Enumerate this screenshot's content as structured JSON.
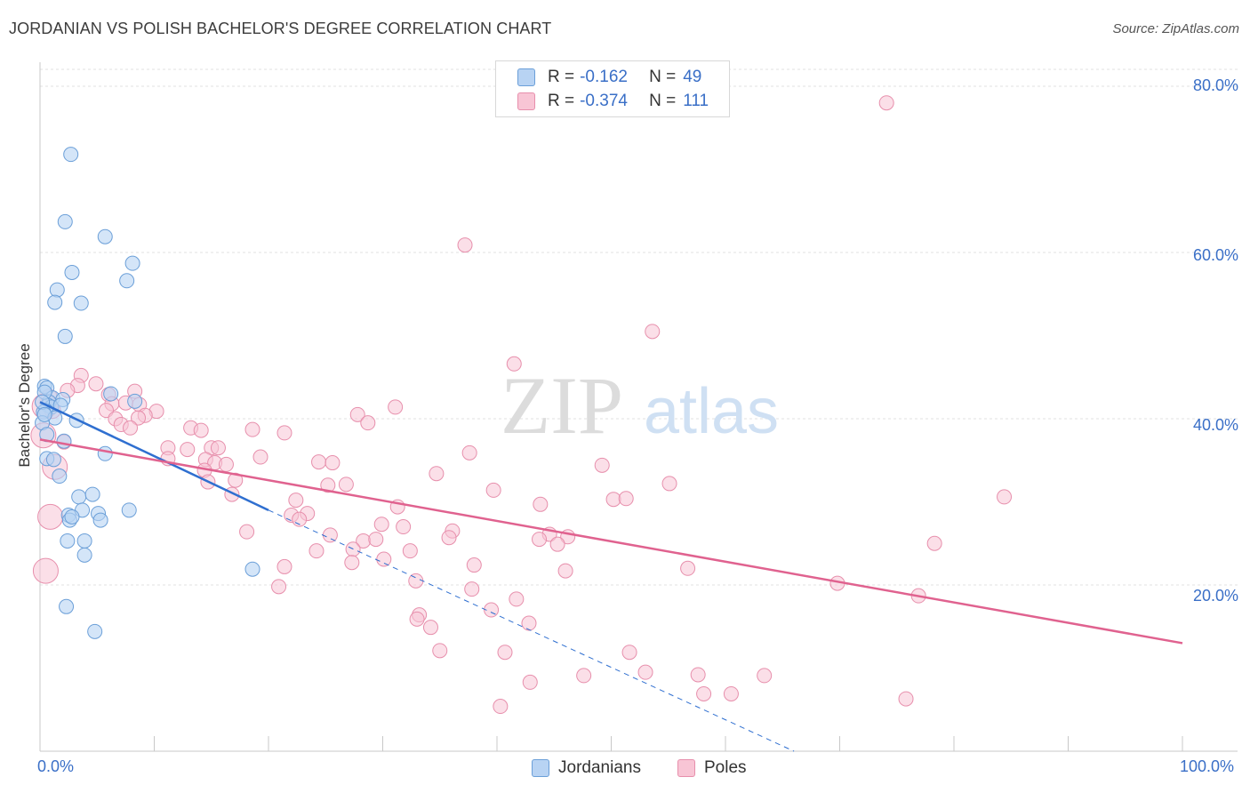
{
  "header": {
    "title": "JORDANIAN VS POLISH BACHELOR'S DEGREE CORRELATION CHART",
    "source": "Source: ZipAtlas.com"
  },
  "watermark": {
    "zip": "ZIP",
    "atlas": "atlas"
  },
  "legend_stats": [
    {
      "r_label": "R =",
      "r_value": "-0.162",
      "n_label": "N =",
      "n_value": "49"
    },
    {
      "r_label": "R =",
      "r_value": "-0.374",
      "n_label": "N =",
      "n_value": "111"
    }
  ],
  "legend_bottom": [
    "Jordanians",
    "Poles"
  ],
  "colors": {
    "jordanians_fill": "#b8d3f3",
    "jordanians_stroke": "#6b9fd8",
    "jordanians_line": "#2f6fd0",
    "poles_fill": "#f8c5d5",
    "poles_stroke": "#e78fac",
    "poles_line": "#e0628f",
    "tick_text": "#3a6fc7",
    "grid": "#e0e0e0"
  },
  "chart_data": {
    "type": "scatter",
    "title": "JORDANIAN VS POLISH BACHELOR'S DEGREE CORRELATION CHART",
    "xlabel": "",
    "ylabel": "Bachelor's Degree",
    "xlim": [
      0,
      100
    ],
    "ylim": [
      0,
      81
    ],
    "x_tick_labels": [
      "0.0%",
      "100.0%"
    ],
    "y_ticks": [
      20,
      40,
      60,
      80
    ],
    "y_tick_labels": [
      "20.0%",
      "40.0%",
      "60.0%",
      "80.0%"
    ],
    "grid": true,
    "series": [
      {
        "name": "Jordanians",
        "r": -0.162,
        "n": 49,
        "trend": {
          "x0": 0,
          "y0": 42,
          "x1": 20,
          "y1": 29,
          "dashed_to_x": 66,
          "dashed_to_y": 0
        },
        "points": [
          [
            2.7,
            71.8
          ],
          [
            2.2,
            63.7
          ],
          [
            5.7,
            61.9
          ],
          [
            8.1,
            58.7
          ],
          [
            2.8,
            57.6
          ],
          [
            7.6,
            56.6
          ],
          [
            1.5,
            55.5
          ],
          [
            1.3,
            54.0
          ],
          [
            3.6,
            53.9
          ],
          [
            2.2,
            49.9
          ],
          [
            0.4,
            43.9
          ],
          [
            0.6,
            43.7
          ],
          [
            6.2,
            43.0
          ],
          [
            1.1,
            42.5
          ],
          [
            2.0,
            42.3
          ],
          [
            8.3,
            42.1
          ],
          [
            0.8,
            42.0
          ],
          [
            0.7,
            41.6
          ],
          [
            1.0,
            41.4
          ],
          [
            1.8,
            41.6
          ],
          [
            0.5,
            41.0
          ],
          [
            0.3,
            40.8
          ],
          [
            1.3,
            40.1
          ],
          [
            3.2,
            39.8
          ],
          [
            0.2,
            39.5
          ],
          [
            0.6,
            38.1
          ],
          [
            2.1,
            37.3
          ],
          [
            5.7,
            35.8
          ],
          [
            0.6,
            35.2
          ],
          [
            1.2,
            35.1
          ],
          [
            1.7,
            33.1
          ],
          [
            3.4,
            30.6
          ],
          [
            4.6,
            30.9
          ],
          [
            7.8,
            29.0
          ],
          [
            3.7,
            29.0
          ],
          [
            2.5,
            28.4
          ],
          [
            2.6,
            27.8
          ],
          [
            2.8,
            28.2
          ],
          [
            5.1,
            28.6
          ],
          [
            5.3,
            27.8
          ],
          [
            2.4,
            25.3
          ],
          [
            3.9,
            25.3
          ],
          [
            3.9,
            23.6
          ],
          [
            18.6,
            21.9
          ],
          [
            2.3,
            17.4
          ],
          [
            4.8,
            14.4
          ],
          [
            0.4,
            43.2
          ],
          [
            0.2,
            42.0
          ],
          [
            0.4,
            40.5
          ]
        ]
      },
      {
        "name": "Poles",
        "r": -0.374,
        "n": 111,
        "trend": {
          "x0": 0,
          "y0": 37.5,
          "x1": 100,
          "y1": 13
        },
        "points": [
          [
            74.1,
            78.0
          ],
          [
            37.2,
            60.9
          ],
          [
            53.6,
            50.5
          ],
          [
            41.5,
            46.6
          ],
          [
            3.6,
            45.2
          ],
          [
            3.3,
            44.0
          ],
          [
            4.9,
            44.2
          ],
          [
            6.0,
            42.9
          ],
          [
            8.3,
            43.3
          ],
          [
            2.4,
            43.4
          ],
          [
            0.8,
            42.6
          ],
          [
            6.3,
            41.8
          ],
          [
            7.5,
            41.9
          ],
          [
            10.2,
            40.9
          ],
          [
            8.7,
            41.7
          ],
          [
            0.4,
            41.5
          ],
          [
            1.1,
            41.0
          ],
          [
            5.8,
            41.0
          ],
          [
            31.1,
            41.4
          ],
          [
            27.8,
            40.5
          ],
          [
            9.2,
            40.4
          ],
          [
            8.6,
            40.1
          ],
          [
            6.6,
            40.0
          ],
          [
            7.1,
            39.3
          ],
          [
            28.7,
            39.5
          ],
          [
            7.9,
            38.9
          ],
          [
            13.2,
            38.9
          ],
          [
            14.1,
            38.6
          ],
          [
            18.6,
            38.7
          ],
          [
            21.4,
            38.3
          ],
          [
            0.3,
            38.0
          ],
          [
            2.1,
            37.2
          ],
          [
            11.2,
            36.5
          ],
          [
            12.9,
            36.3
          ],
          [
            15.0,
            36.5
          ],
          [
            15.6,
            36.5
          ],
          [
            37.6,
            35.9
          ],
          [
            19.3,
            35.4
          ],
          [
            11.2,
            35.2
          ],
          [
            14.5,
            35.1
          ],
          [
            15.3,
            34.7
          ],
          [
            16.3,
            34.5
          ],
          [
            24.4,
            34.8
          ],
          [
            25.6,
            34.7
          ],
          [
            49.2,
            34.4
          ],
          [
            1.3,
            34.2
          ],
          [
            14.4,
            33.8
          ],
          [
            34.7,
            33.4
          ],
          [
            17.1,
            32.6
          ],
          [
            14.7,
            32.4
          ],
          [
            25.2,
            32.0
          ],
          [
            26.8,
            32.1
          ],
          [
            55.1,
            32.2
          ],
          [
            39.7,
            31.4
          ],
          [
            16.8,
            30.9
          ],
          [
            22.4,
            30.2
          ],
          [
            50.2,
            30.3
          ],
          [
            51.3,
            30.4
          ],
          [
            84.4,
            30.6
          ],
          [
            43.8,
            29.7
          ],
          [
            31.3,
            29.4
          ],
          [
            22.0,
            28.4
          ],
          [
            23.4,
            28.6
          ],
          [
            0.9,
            28.2
          ],
          [
            22.7,
            27.9
          ],
          [
            29.9,
            27.3
          ],
          [
            31.8,
            27.0
          ],
          [
            36.1,
            26.5
          ],
          [
            18.1,
            26.4
          ],
          [
            25.4,
            26.0
          ],
          [
            44.6,
            26.1
          ],
          [
            46.2,
            25.8
          ],
          [
            28.3,
            25.3
          ],
          [
            29.4,
            25.5
          ],
          [
            35.8,
            25.7
          ],
          [
            43.7,
            25.5
          ],
          [
            45.3,
            24.9
          ],
          [
            78.3,
            25.0
          ],
          [
            24.2,
            24.1
          ],
          [
            32.4,
            24.1
          ],
          [
            27.4,
            24.3
          ],
          [
            30.1,
            23.1
          ],
          [
            27.3,
            22.7
          ],
          [
            38.0,
            22.4
          ],
          [
            21.4,
            22.2
          ],
          [
            56.7,
            22.0
          ],
          [
            46.0,
            21.7
          ],
          [
            0.5,
            21.7
          ],
          [
            32.9,
            20.5
          ],
          [
            69.8,
            20.2
          ],
          [
            20.9,
            19.8
          ],
          [
            37.8,
            19.5
          ],
          [
            76.9,
            18.7
          ],
          [
            41.7,
            18.3
          ],
          [
            39.5,
            17.0
          ],
          [
            33.2,
            16.4
          ],
          [
            33.0,
            15.9
          ],
          [
            42.8,
            15.4
          ],
          [
            34.2,
            14.9
          ],
          [
            35.0,
            12.1
          ],
          [
            40.7,
            11.9
          ],
          [
            51.6,
            11.9
          ],
          [
            53.0,
            9.5
          ],
          [
            57.6,
            9.2
          ],
          [
            47.6,
            9.1
          ],
          [
            63.4,
            9.1
          ],
          [
            42.9,
            8.3
          ],
          [
            60.5,
            6.9
          ],
          [
            58.1,
            6.9
          ],
          [
            75.8,
            6.3
          ],
          [
            40.3,
            5.4
          ]
        ]
      }
    ]
  }
}
